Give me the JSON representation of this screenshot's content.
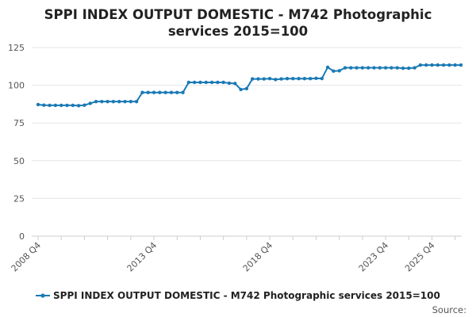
{
  "chart_data": {
    "type": "line",
    "title_lines": [
      "SPPI INDEX OUTPUT DOMESTIC - M742 Photographic",
      "services 2015=100"
    ],
    "xlabel": "",
    "ylabel": "",
    "ylim": [
      0,
      125
    ],
    "yticks": [
      "0",
      "25",
      "50",
      "75",
      "100",
      "125"
    ],
    "xticks": [
      {
        "label": "2008 Q4",
        "index": 0
      },
      {
        "label": "2013 Q4",
        "index": 20
      },
      {
        "label": "2018 Q4",
        "index": 40
      },
      {
        "label": "2023 Q4",
        "index": 60
      },
      {
        "label": "2025 Q4",
        "index": 68
      }
    ],
    "grid": true,
    "legend_position": "bottom",
    "series": [
      {
        "name": "SPPI INDEX OUTPUT DOMESTIC - M742 Photographic services 2015=100",
        "color": "#1a7ab5",
        "values": [
          87.2,
          86.8,
          86.7,
          86.7,
          86.7,
          86.7,
          86.7,
          86.5,
          86.8,
          88.0,
          89.2,
          89.2,
          89.2,
          89.2,
          89.2,
          89.2,
          89.2,
          89.2,
          95.2,
          95.2,
          95.2,
          95.2,
          95.2,
          95.2,
          95.2,
          95.2,
          101.9,
          101.9,
          101.9,
          101.9,
          101.9,
          101.9,
          101.9,
          101.4,
          101.2,
          97.2,
          97.8,
          104.2,
          104.2,
          104.2,
          104.4,
          103.8,
          104.2,
          104.4,
          104.4,
          104.4,
          104.4,
          104.4,
          104.6,
          104.5,
          111.9,
          109.4,
          109.6,
          111.6,
          111.6,
          111.6,
          111.6,
          111.6,
          111.6,
          111.6,
          111.6,
          111.6,
          111.6,
          111.3,
          111.3,
          111.6,
          113.4,
          113.4,
          113.4,
          113.4,
          113.4,
          113.4,
          113.4,
          113.4
        ]
      }
    ]
  },
  "source_label": "Source:"
}
